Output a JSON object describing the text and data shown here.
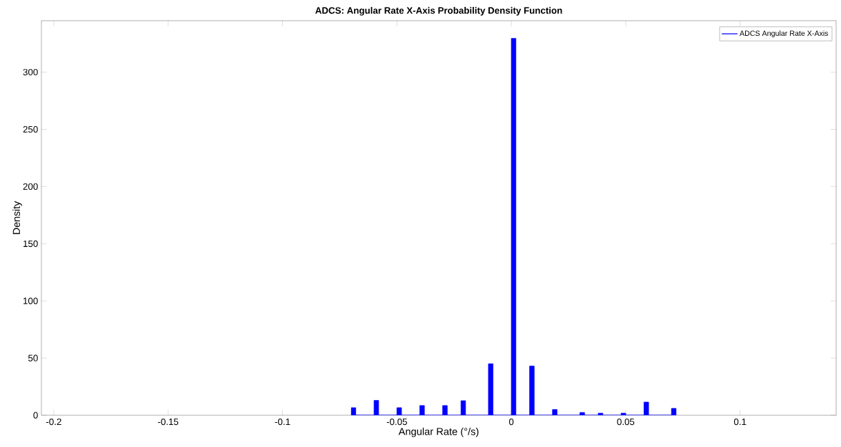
{
  "chart_data": {
    "type": "histogram",
    "title": "ADCS: Angular Rate X-Axis Probability Density Function",
    "xlabel": "Angular Rate (°/s)",
    "ylabel": "Density",
    "bins": [
      -0.07,
      -0.068,
      -0.06,
      -0.058,
      -0.05,
      -0.048,
      -0.04,
      -0.038,
      -0.03,
      -0.028,
      -0.022,
      -0.02,
      -0.01,
      -0.008,
      0,
      0.002,
      0.008,
      0.01,
      0.018,
      0.02,
      0.03,
      0.032,
      0.038,
      0.04,
      0.048,
      0.05,
      0.058,
      0.06,
      0.07,
      0.072
    ],
    "series": [
      {
        "name": "ADCS Angular Rate X-Axis",
        "color": "#0000ff",
        "values": [
          6.6,
          0,
          13,
          0,
          6.6,
          0,
          8.5,
          0,
          8.5,
          0,
          12.7,
          0,
          45,
          0,
          329.5,
          0,
          43,
          0,
          5,
          0,
          2.4,
          0,
          1.8,
          0,
          1.8,
          0,
          11.5,
          0,
          6
        ]
      }
    ],
    "xlim": [
      -0.2054,
      0.142
    ],
    "ylim": [
      0,
      345
    ],
    "xticks": [
      -0.2,
      -0.15,
      -0.1,
      -0.05,
      0,
      0.05,
      0.1
    ],
    "yticks": [
      0,
      50,
      100,
      150,
      200,
      250,
      300
    ],
    "grid": false,
    "legend": "top right"
  }
}
